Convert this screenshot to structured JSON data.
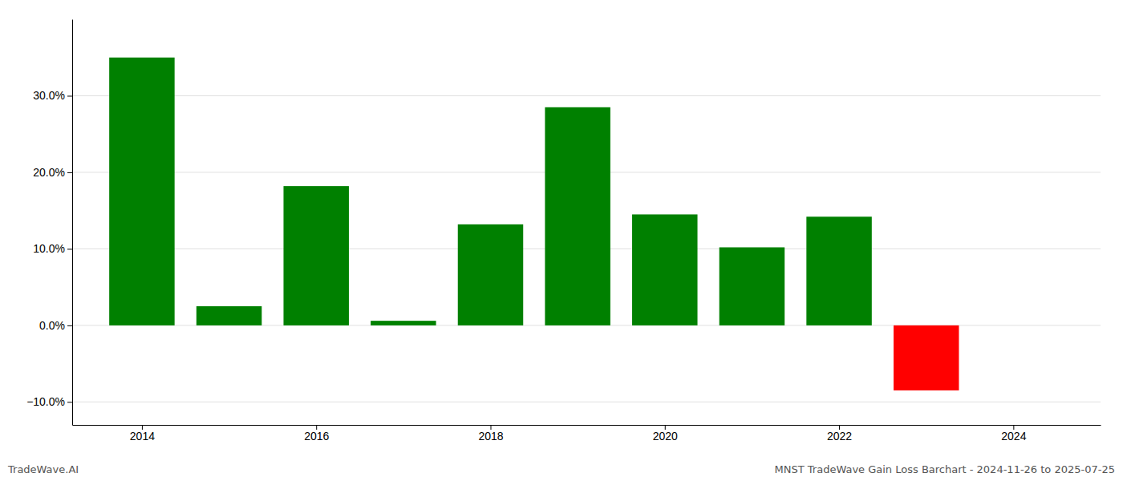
{
  "chart_data": {
    "type": "bar",
    "x": [
      2014,
      2015,
      2016,
      2017,
      2018,
      2019,
      2020,
      2021,
      2022,
      2023
    ],
    "values": [
      35.0,
      2.5,
      18.2,
      0.6,
      13.2,
      28.5,
      14.5,
      10.2,
      14.2,
      -8.5
    ],
    "colors": [
      "#008000",
      "#008000",
      "#008000",
      "#008000",
      "#008000",
      "#008000",
      "#008000",
      "#008000",
      "#008000",
      "#ff0000"
    ],
    "xlim": [
      2013.2,
      2025.0
    ],
    "xticks": [
      2014,
      2016,
      2018,
      2020,
      2022,
      2024
    ],
    "ylim": [
      -13,
      40
    ],
    "yticks": [
      {
        "value": -10,
        "label": "−10.0%"
      },
      {
        "value": 0,
        "label": "0.0%"
      },
      {
        "value": 10,
        "label": "10.0%"
      },
      {
        "value": 20,
        "label": "20.0%"
      },
      {
        "value": 30,
        "label": "30.0%"
      }
    ],
    "grid": true,
    "annotations": [
      "TradeWave.AI",
      "MNST TradeWave Gain Loss Barchart - 2024-11-26 to 2025-07-25"
    ]
  }
}
